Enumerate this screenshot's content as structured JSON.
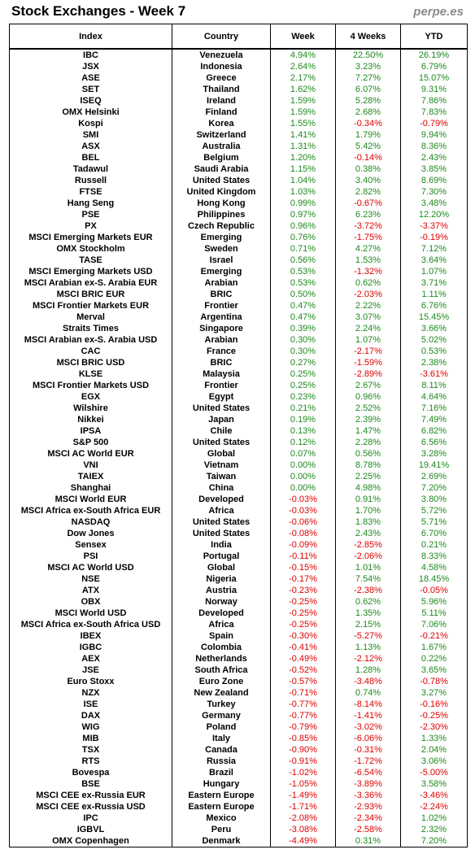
{
  "title": "Stock Exchanges - Week 7",
  "brand": "perpe.es",
  "colors": {
    "positive": "#1e8a1e",
    "negative": "#e00000"
  },
  "columns": [
    "Index",
    "Country",
    "Week",
    "4 Weeks",
    "YTD"
  ],
  "rows": [
    [
      "IBC",
      "Venezuela",
      "4.94%",
      "22.50%",
      "26.19%"
    ],
    [
      "JSX",
      "Indonesia",
      "2.64%",
      "3.23%",
      "6.79%"
    ],
    [
      "ASE",
      "Greece",
      "2.17%",
      "7.27%",
      "15.07%"
    ],
    [
      "SET",
      "Thailand",
      "1.62%",
      "6.07%",
      "9.31%"
    ],
    [
      "ISEQ",
      "Ireland",
      "1.59%",
      "5.28%",
      "7.86%"
    ],
    [
      "OMX Helsinki",
      "Finland",
      "1.59%",
      "2.68%",
      "7.83%"
    ],
    [
      "Kospi",
      "Korea",
      "1.55%",
      "-0.34%",
      "-0.79%"
    ],
    [
      "SMI",
      "Switzerland",
      "1.41%",
      "1.79%",
      "9.94%"
    ],
    [
      "ASX",
      "Australia",
      "1.31%",
      "5.42%",
      "8.36%"
    ],
    [
      "BEL",
      "Belgium",
      "1.20%",
      "-0.14%",
      "2.43%"
    ],
    [
      "Tadawul",
      "Saudi Arabia",
      "1.15%",
      "0.38%",
      "3.85%"
    ],
    [
      "Russell",
      "United States",
      "1.04%",
      "3.40%",
      "8.69%"
    ],
    [
      "FTSE",
      "United Kingdom",
      "1.03%",
      "2.82%",
      "7.30%"
    ],
    [
      "Hang Seng",
      "Hong Kong",
      "0.99%",
      "-0.67%",
      "3.48%"
    ],
    [
      "PSE",
      "Philippines",
      "0.97%",
      "6.23%",
      "12.20%"
    ],
    [
      "PX",
      "Czech Republic",
      "0.96%",
      "-3.72%",
      "-3.37%"
    ],
    [
      "MSCI Emerging Markets EUR",
      "Emerging",
      "0.76%",
      "-1.75%",
      "-0.19%"
    ],
    [
      "OMX Stockholm",
      "Sweden",
      "0.71%",
      "4.27%",
      "7.12%"
    ],
    [
      "TASE",
      "Israel",
      "0.56%",
      "1.53%",
      "3.64%"
    ],
    [
      "MSCI Emerging Markets USD",
      "Emerging",
      "0.53%",
      "-1.32%",
      "1.07%"
    ],
    [
      "MSCI Arabian ex-S. Arabia EUR",
      "Arabian",
      "0.53%",
      "0.62%",
      "3.71%"
    ],
    [
      "MSCI BRIC EUR",
      "BRIC",
      "0.50%",
      "-2.03%",
      "1.11%"
    ],
    [
      "MSCI Frontier Markets EUR",
      "Frontier",
      "0.47%",
      "2.22%",
      "6.76%"
    ],
    [
      "Merval",
      "Argentina",
      "0.47%",
      "3.07%",
      "15.45%"
    ],
    [
      "Straits Times",
      "Singapore",
      "0.39%",
      "2.24%",
      "3.66%"
    ],
    [
      "MSCI Arabian ex-S. Arabia USD",
      "Arabian",
      "0.30%",
      "1.07%",
      "5.02%"
    ],
    [
      "CAC",
      "France",
      "0.30%",
      "-2.17%",
      "0.53%"
    ],
    [
      "MSCI BRIC USD",
      "BRIC",
      "0.27%",
      "-1.59%",
      "2.38%"
    ],
    [
      "KLSE",
      "Malaysia",
      "0.25%",
      "-2.89%",
      "-3.61%"
    ],
    [
      "MSCI Frontier Markets USD",
      "Frontier",
      "0.25%",
      "2.67%",
      "8.11%"
    ],
    [
      "EGX",
      "Egypt",
      "0.23%",
      "0.96%",
      "4.64%"
    ],
    [
      "Wilshire",
      "United States",
      "0.21%",
      "2.52%",
      "7.16%"
    ],
    [
      "Nikkei",
      "Japan",
      "0.19%",
      "2.39%",
      "7.49%"
    ],
    [
      "IPSA",
      "Chile",
      "0.13%",
      "1.47%",
      "6.82%"
    ],
    [
      "S&P 500",
      "United States",
      "0.12%",
      "2.28%",
      "6.56%"
    ],
    [
      "MSCI AC World EUR",
      "Global",
      "0.07%",
      "0.56%",
      "3.28%"
    ],
    [
      "VNI",
      "Vietnam",
      "0.00%",
      "8.78%",
      "19.41%"
    ],
    [
      "TAIEX",
      "Taiwan",
      "0.00%",
      "2.25%",
      "2.69%"
    ],
    [
      "Shanghai",
      "China",
      "0.00%",
      "4.98%",
      "7.20%"
    ],
    [
      "MSCI World EUR",
      "Developed",
      "-0.03%",
      "0.91%",
      "3.80%"
    ],
    [
      "MSCI Africa ex-South Africa EUR",
      "Africa",
      "-0.03%",
      "1.70%",
      "5.72%"
    ],
    [
      "NASDAQ",
      "United States",
      "-0.06%",
      "1.83%",
      "5.71%"
    ],
    [
      "Dow Jones",
      "United States",
      "-0.08%",
      "2.43%",
      "6.70%"
    ],
    [
      "Sensex",
      "India",
      "-0.09%",
      "-2.85%",
      "0.21%"
    ],
    [
      "PSI",
      "Portugal",
      "-0.11%",
      "-2.06%",
      "8.33%"
    ],
    [
      "MSCI AC World USD",
      "Global",
      "-0.15%",
      "1.01%",
      "4.58%"
    ],
    [
      "NSE",
      "Nigeria",
      "-0.17%",
      "7.54%",
      "18.45%"
    ],
    [
      "ATX",
      "Austria",
      "-0.23%",
      "-2.38%",
      "-0.05%"
    ],
    [
      "OBX",
      "Norway",
      "-0.25%",
      "0.62%",
      "5.96%"
    ],
    [
      "MSCI World USD",
      "Developed",
      "-0.25%",
      "1.35%",
      "5.11%"
    ],
    [
      "MSCI Africa ex-South Africa USD",
      "Africa",
      "-0.25%",
      "2.15%",
      "7.06%"
    ],
    [
      "IBEX",
      "Spain",
      "-0.30%",
      "-5.27%",
      "-0.21%"
    ],
    [
      "IGBC",
      "Colombia",
      "-0.41%",
      "1.13%",
      "1.67%"
    ],
    [
      "AEX",
      "Netherlands",
      "-0.49%",
      "-2.12%",
      "0.22%"
    ],
    [
      "JSE",
      "South Africa",
      "-0.52%",
      "1.28%",
      "3.65%"
    ],
    [
      "Euro Stoxx",
      "Euro Zone",
      "-0.57%",
      "-3.48%",
      "-0.78%"
    ],
    [
      "NZX",
      "New Zealand",
      "-0.71%",
      "0.74%",
      "3.27%"
    ],
    [
      "ISE",
      "Turkey",
      "-0.77%",
      "-8.14%",
      "-0.16%"
    ],
    [
      "DAX",
      "Germany",
      "-0.77%",
      "-1.41%",
      "-0.25%"
    ],
    [
      "WIG",
      "Poland",
      "-0.79%",
      "-3.02%",
      "-2.30%"
    ],
    [
      "MIB",
      "Italy",
      "-0.85%",
      "-6.06%",
      "1.33%"
    ],
    [
      "TSX",
      "Canada",
      "-0.90%",
      "-0.31%",
      "2.04%"
    ],
    [
      "RTS",
      "Russia",
      "-0.91%",
      "-1.72%",
      "3.06%"
    ],
    [
      "Bovespa",
      "Brazil",
      "-1.02%",
      "-6.54%",
      "-5.00%"
    ],
    [
      "BSE",
      "Hungary",
      "-1.05%",
      "-3.89%",
      "3.58%"
    ],
    [
      "MSCI CEE ex-Russia EUR",
      "Eastern Europe",
      "-1.49%",
      "-3.36%",
      "-3.46%"
    ],
    [
      "MSCI CEE ex-Russia USD",
      "Eastern Europe",
      "-1.71%",
      "-2.93%",
      "-2.24%"
    ],
    [
      "IPC",
      "Mexico",
      "-2.08%",
      "-2.34%",
      "1.02%"
    ],
    [
      "IGBVL",
      "Peru",
      "-3.08%",
      "-2.58%",
      "2.32%"
    ],
    [
      "OMX Copenhagen",
      "Denmark",
      "-4.49%",
      "0.31%",
      "7.20%"
    ]
  ]
}
